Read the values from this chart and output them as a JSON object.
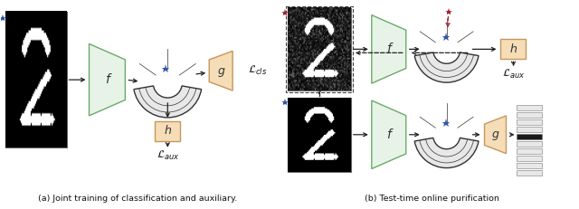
{
  "fig_width": 6.4,
  "fig_height": 2.31,
  "dpi": 100,
  "bg_color": "#ffffff",
  "caption_a": "(a) Joint training of classification and auxiliary.",
  "caption_b": "(b) Test-time online purification",
  "green_color": "#e8f3e8",
  "green_edge": "#6aaa6a",
  "peach_color": "#f5ddb8",
  "peach_edge": "#c8965a",
  "fan_facecolor": "#e8e8e8",
  "fan_edgecolor": "#333333",
  "blue_star": "#3355aa",
  "red_star": "#aa2233",
  "arrow_color": "#222222",
  "text_color": "#111111",
  "label_f": "f",
  "label_g": "g",
  "label_h": "h",
  "label_cls": "$\\mathcal{L}_{cls}$",
  "label_aux": "$\\mathcal{L}_{aux}$"
}
